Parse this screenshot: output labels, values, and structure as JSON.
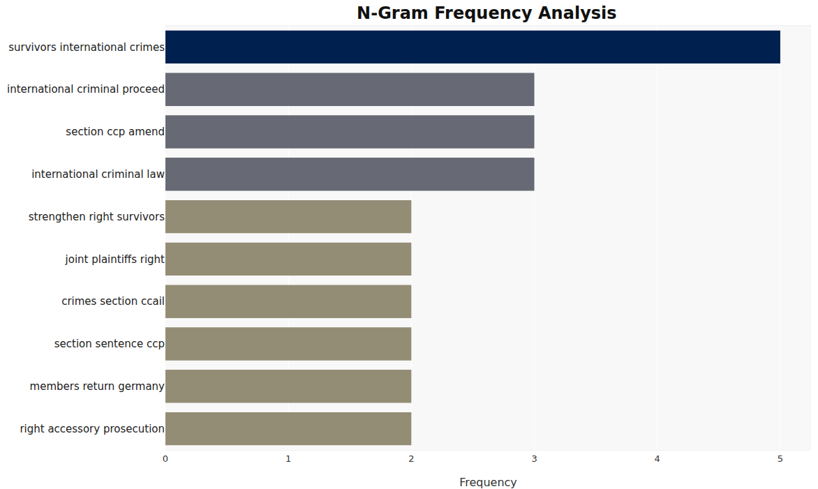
{
  "chart_data": {
    "type": "bar",
    "title": "N-Gram Frequency Analysis",
    "orientation": "horizontal",
    "categories": [
      "survivors international crimes",
      "international criminal proceed",
      "section ccp amend",
      "international criminal law",
      "strengthen right survivors",
      "joint plaintiffs right",
      "crimes section ccail",
      "section sentence ccp",
      "members return germany",
      "right accessory prosecution"
    ],
    "values": [
      5,
      3,
      3,
      3,
      2,
      2,
      2,
      2,
      2,
      2
    ],
    "colors": [
      "#002050",
      "#676a74",
      "#676a74",
      "#676a74",
      "#948d76",
      "#948d76",
      "#948d76",
      "#948d76",
      "#948d76",
      "#948d76"
    ],
    "x_label": "Frequency",
    "xlim": [
      0,
      5.25
    ],
    "xticks": [
      0,
      1,
      2,
      3,
      4,
      5
    ],
    "grid": true
  }
}
